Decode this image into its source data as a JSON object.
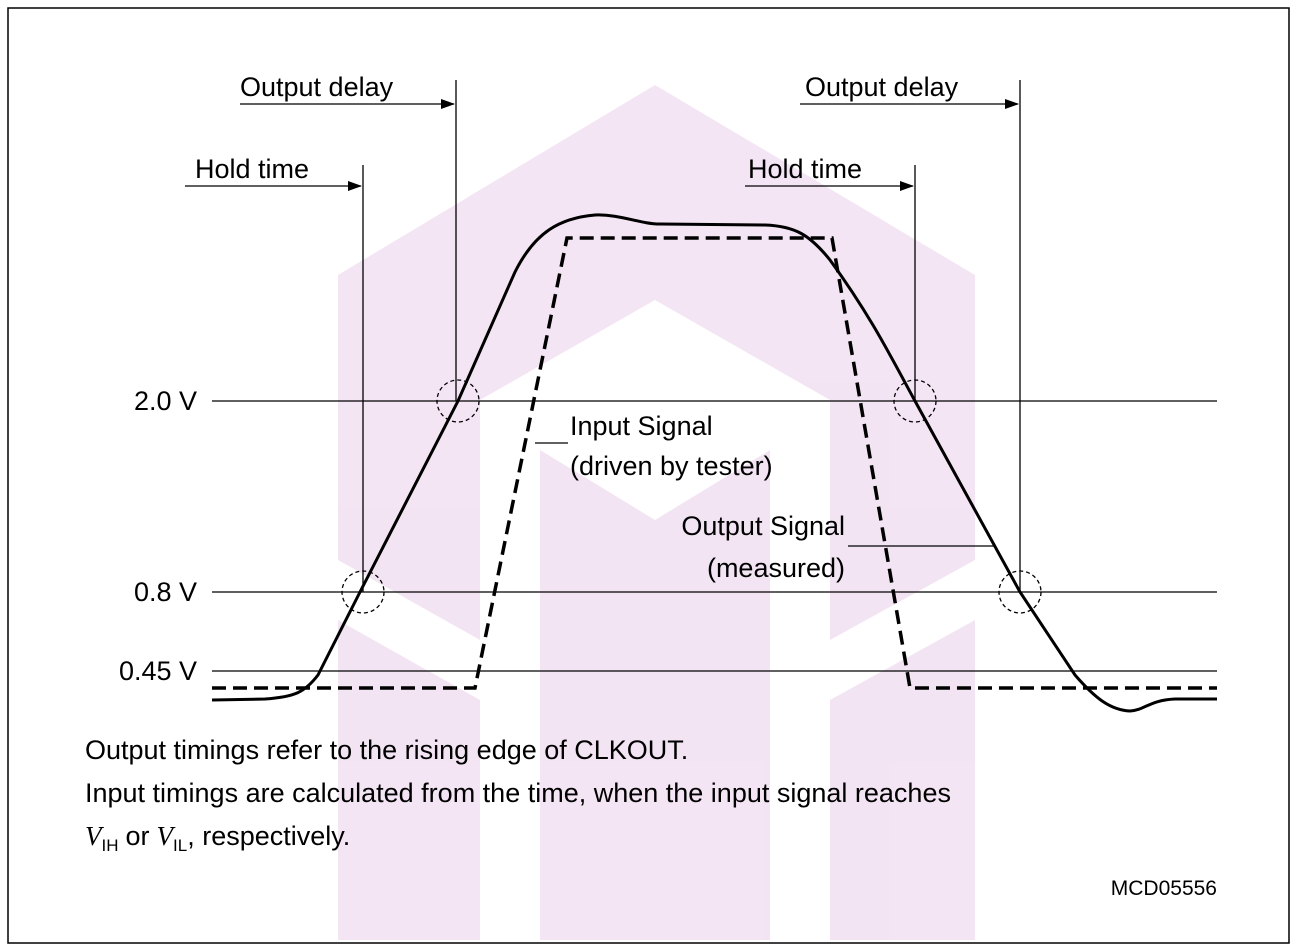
{
  "annotations": {
    "output_delay_left": "Output delay",
    "output_delay_right": "Output delay",
    "hold_time_left": "Hold time",
    "hold_time_right": "Hold time"
  },
  "levels": [
    "2.0 V",
    "0.8 V",
    "0.45 V"
  ],
  "signals": {
    "input": [
      "Input Signal",
      "(driven by tester)"
    ],
    "output": [
      "Output Signal",
      "(measured)"
    ]
  },
  "notes": {
    "line1": "Output timings refer to the rising edge of CLKOUT.",
    "line2": "Input timings are calculated from the time, when the input signal reaches",
    "line3": {
      "v1": "V",
      "sub1": "IH",
      "or": "or",
      "v2": "V",
      "sub2": "IL",
      "rest": ", respectively."
    }
  },
  "figure_id": "MCD05556"
}
